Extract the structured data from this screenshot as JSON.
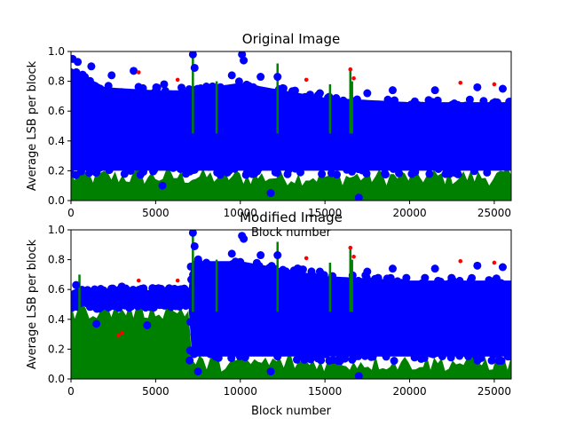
{
  "chart_data": [
    {
      "type": "scatter",
      "title": "Original Image",
      "xlabel": "Block number",
      "ylabel": "Average LSB per block",
      "xlim": [
        0,
        26000
      ],
      "ylim": [
        0,
        1.0
      ],
      "xticks": [
        0,
        5000,
        10000,
        15000,
        20000,
        25000
      ],
      "xtick_labels": [
        "0",
        "5000",
        "10000",
        "15000",
        "20000",
        "25000"
      ],
      "yticks": [
        0.0,
        0.2,
        0.4,
        0.6,
        0.8,
        1.0
      ],
      "ytick_labels": [
        "0.0",
        "0.2",
        "0.4",
        "0.6",
        "0.8",
        "1.0"
      ],
      "grid": false,
      "series": [
        {
          "color": "#0000ff",
          "marker": "circle",
          "band": [
            [
              0,
              0.05,
              0.95
            ],
            [
              2000,
              0.05,
              0.82
            ],
            [
              5000,
              0.05,
              0.8
            ],
            [
              7000,
              0.05,
              0.8
            ],
            [
              10000,
              0.05,
              0.85
            ],
            [
              15000,
              0.05,
              0.75
            ],
            [
              20000,
              0.05,
              0.72
            ],
            [
              26000,
              0.05,
              0.72
            ]
          ],
          "values": [
            [
              100,
              0.95
            ],
            [
              400,
              0.93
            ],
            [
              1200,
              0.9
            ],
            [
              2400,
              0.84
            ],
            [
              3700,
              0.87
            ],
            [
              5500,
              0.78
            ],
            [
              7200,
              0.98
            ],
            [
              7300,
              0.89
            ],
            [
              9500,
              0.84
            ],
            [
              10100,
              0.98
            ],
            [
              10200,
              0.94
            ],
            [
              11200,
              0.83
            ],
            [
              12200,
              0.83
            ],
            [
              14700,
              0.72
            ],
            [
              17500,
              0.72
            ],
            [
              19000,
              0.74
            ],
            [
              21500,
              0.74
            ],
            [
              24000,
              0.76
            ],
            [
              25500,
              0.75
            ],
            [
              5400,
              0.1
            ],
            [
              11800,
              0.05
            ],
            [
              17000,
              0.02
            ],
            [
              24300,
              0.28
            ],
            [
              26000,
              0.25
            ]
          ]
        },
        {
          "color": "#008000",
          "marker": "stem",
          "values": [
            [
              7200,
              0.98
            ],
            [
              8600,
              0.8
            ],
            [
              12200,
              0.92
            ],
            [
              15300,
              0.78
            ],
            [
              16500,
              0.88
            ],
            [
              16600,
              0.8
            ]
          ]
        },
        {
          "color": "#ff0000",
          "marker": "dot",
          "values": [
            [
              4000,
              0.86
            ],
            [
              6300,
              0.81
            ],
            [
              13900,
              0.81
            ],
            [
              16500,
              0.88
            ],
            [
              16700,
              0.82
            ],
            [
              23000,
              0.79
            ],
            [
              25000,
              0.78
            ]
          ]
        }
      ]
    },
    {
      "type": "scatter",
      "title": "Modified Image",
      "xlabel": "Block number",
      "ylabel": "Average LSB per block",
      "xlim": [
        0,
        26000
      ],
      "ylim": [
        0,
        1.0
      ],
      "xticks": [
        0,
        5000,
        10000,
        15000,
        20000,
        25000
      ],
      "xtick_labels": [
        "0",
        "5000",
        "10000",
        "15000",
        "20000",
        "25000"
      ],
      "yticks": [
        0.0,
        0.2,
        0.4,
        0.6,
        0.8,
        1.0
      ],
      "ytick_labels": [
        "0.0",
        "0.2",
        "0.4",
        "0.6",
        "0.8",
        "1.0"
      ],
      "grid": false,
      "series": [
        {
          "color": "#0000ff",
          "marker": "circle",
          "band": [
            [
              0,
              0.35,
              0.65
            ],
            [
              7000,
              0.35,
              0.65
            ],
            [
              7001,
              0.0,
              0.85
            ],
            [
              10000,
              0.0,
              0.85
            ],
            [
              15000,
              0.0,
              0.75
            ],
            [
              20000,
              0.0,
              0.72
            ],
            [
              26000,
              0.0,
              0.72
            ]
          ],
          "values": [
            [
              300,
              0.63
            ],
            [
              1500,
              0.37
            ],
            [
              3000,
              0.62
            ],
            [
              4500,
              0.36
            ],
            [
              6000,
              0.6
            ],
            [
              7200,
              0.98
            ],
            [
              7300,
              0.89
            ],
            [
              9500,
              0.84
            ],
            [
              10100,
              0.96
            ],
            [
              10200,
              0.94
            ],
            [
              11200,
              0.83
            ],
            [
              12200,
              0.83
            ],
            [
              14700,
              0.72
            ],
            [
              17500,
              0.72
            ],
            [
              19000,
              0.74
            ],
            [
              21500,
              0.74
            ],
            [
              24000,
              0.76
            ],
            [
              25500,
              0.75
            ],
            [
              7500,
              0.05
            ],
            [
              11800,
              0.05
            ],
            [
              17000,
              0.02
            ],
            [
              24300,
              0.28
            ]
          ]
        },
        {
          "color": "#008000",
          "marker": "stem",
          "values": [
            [
              500,
              0.7
            ],
            [
              7200,
              0.98
            ],
            [
              8600,
              0.8
            ],
            [
              12200,
              0.92
            ],
            [
              15300,
              0.78
            ],
            [
              16500,
              0.88
            ],
            [
              16600,
              0.8
            ]
          ]
        },
        {
          "color": "#ff0000",
          "marker": "dot",
          "values": [
            [
              2800,
              0.29
            ],
            [
              3000,
              0.31
            ],
            [
              4000,
              0.66
            ],
            [
              6300,
              0.66
            ],
            [
              13900,
              0.81
            ],
            [
              16500,
              0.88
            ],
            [
              16700,
              0.82
            ],
            [
              23000,
              0.79
            ],
            [
              25000,
              0.78
            ]
          ]
        }
      ]
    }
  ]
}
